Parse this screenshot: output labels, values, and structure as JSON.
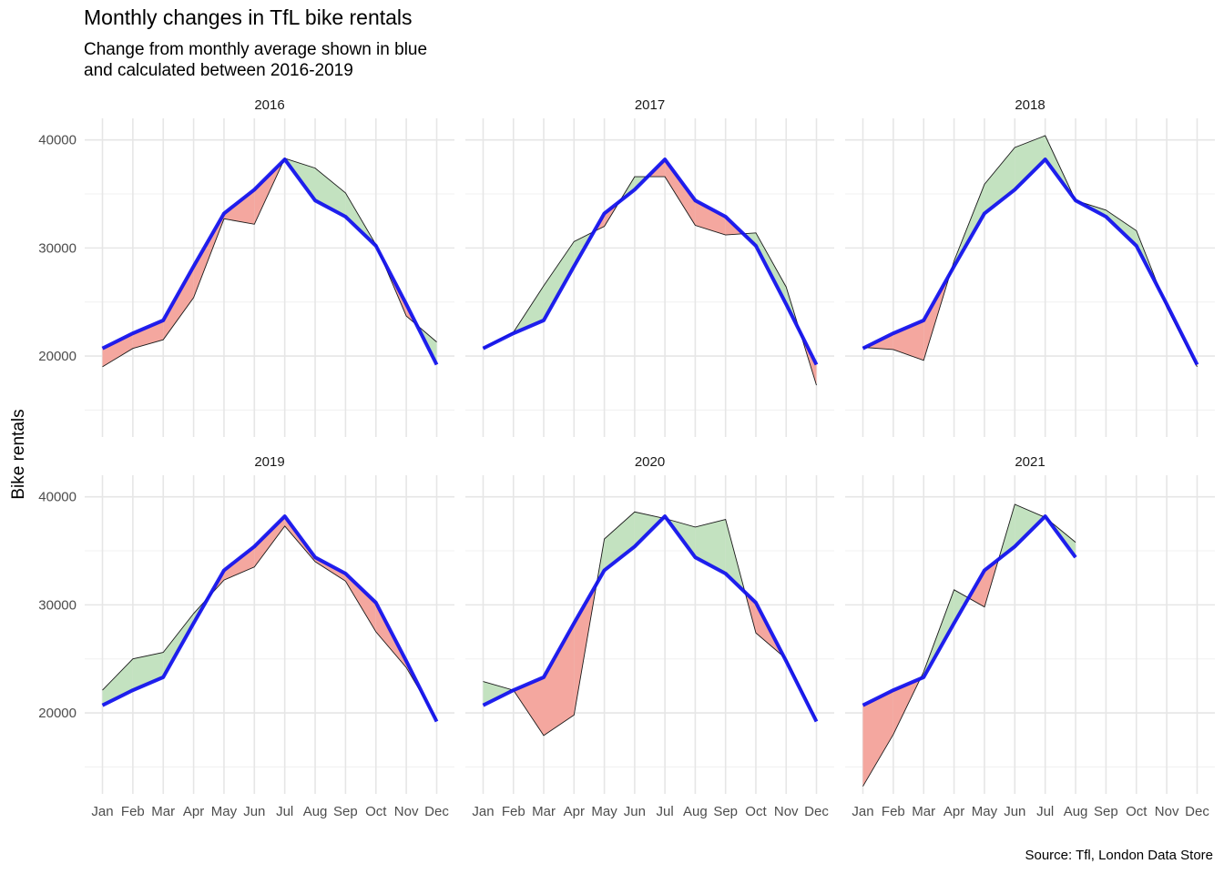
{
  "title": "Monthly changes in TfL bike rentals",
  "subtitle": "Change from monthly average shown in blue\nand calculated between 2016-2019",
  "ylabel": "Bike rentals",
  "caption": "Source: Tfl, London Data Store",
  "colors": {
    "above": "#c3e2c0",
    "below": "#f4a79f",
    "average": "#0d0dee",
    "actual": "#1a1a1a"
  },
  "chart_data": {
    "type": "area",
    "facet_by": "year",
    "x": [
      "Jan",
      "Feb",
      "Mar",
      "Apr",
      "May",
      "Jun",
      "Jul",
      "Aug",
      "Sep",
      "Oct",
      "Nov",
      "Dec"
    ],
    "y_ticks": [
      20000,
      30000,
      40000
    ],
    "ylim": [
      12500,
      42000
    ],
    "grid": true,
    "monthly_average": [
      20700,
      22100,
      23300,
      28300,
      33200,
      35400,
      38200,
      34400,
      32900,
      30200,
      24800,
      19200
    ],
    "panels": [
      {
        "year": "2016",
        "values": [
          19000,
          20700,
          21500,
          25400,
          32700,
          32200,
          38300,
          37400,
          35100,
          30300,
          23700,
          21300
        ]
      },
      {
        "year": "2017",
        "values": [
          20700,
          22200,
          26500,
          30600,
          32000,
          36600,
          36600,
          32100,
          31200,
          31400,
          26400,
          17300
        ]
      },
      {
        "year": "2018",
        "values": [
          20800,
          20600,
          19600,
          28800,
          35900,
          39300,
          40400,
          34400,
          33500,
          31600,
          24500,
          19000
        ]
      },
      {
        "year": "2019",
        "values": [
          22100,
          25000,
          25600,
          29200,
          32300,
          33500,
          37300,
          34000,
          32200,
          27500,
          24200,
          19400
        ]
      },
      {
        "year": "2020",
        "values": [
          22900,
          22100,
          17900,
          19800,
          36100,
          38600,
          38000,
          37200,
          37900,
          27400,
          25000,
          19400
        ]
      },
      {
        "year": "2021",
        "values": [
          13200,
          18000,
          23800,
          31400,
          29800,
          39300,
          38100,
          35800
        ]
      }
    ]
  }
}
